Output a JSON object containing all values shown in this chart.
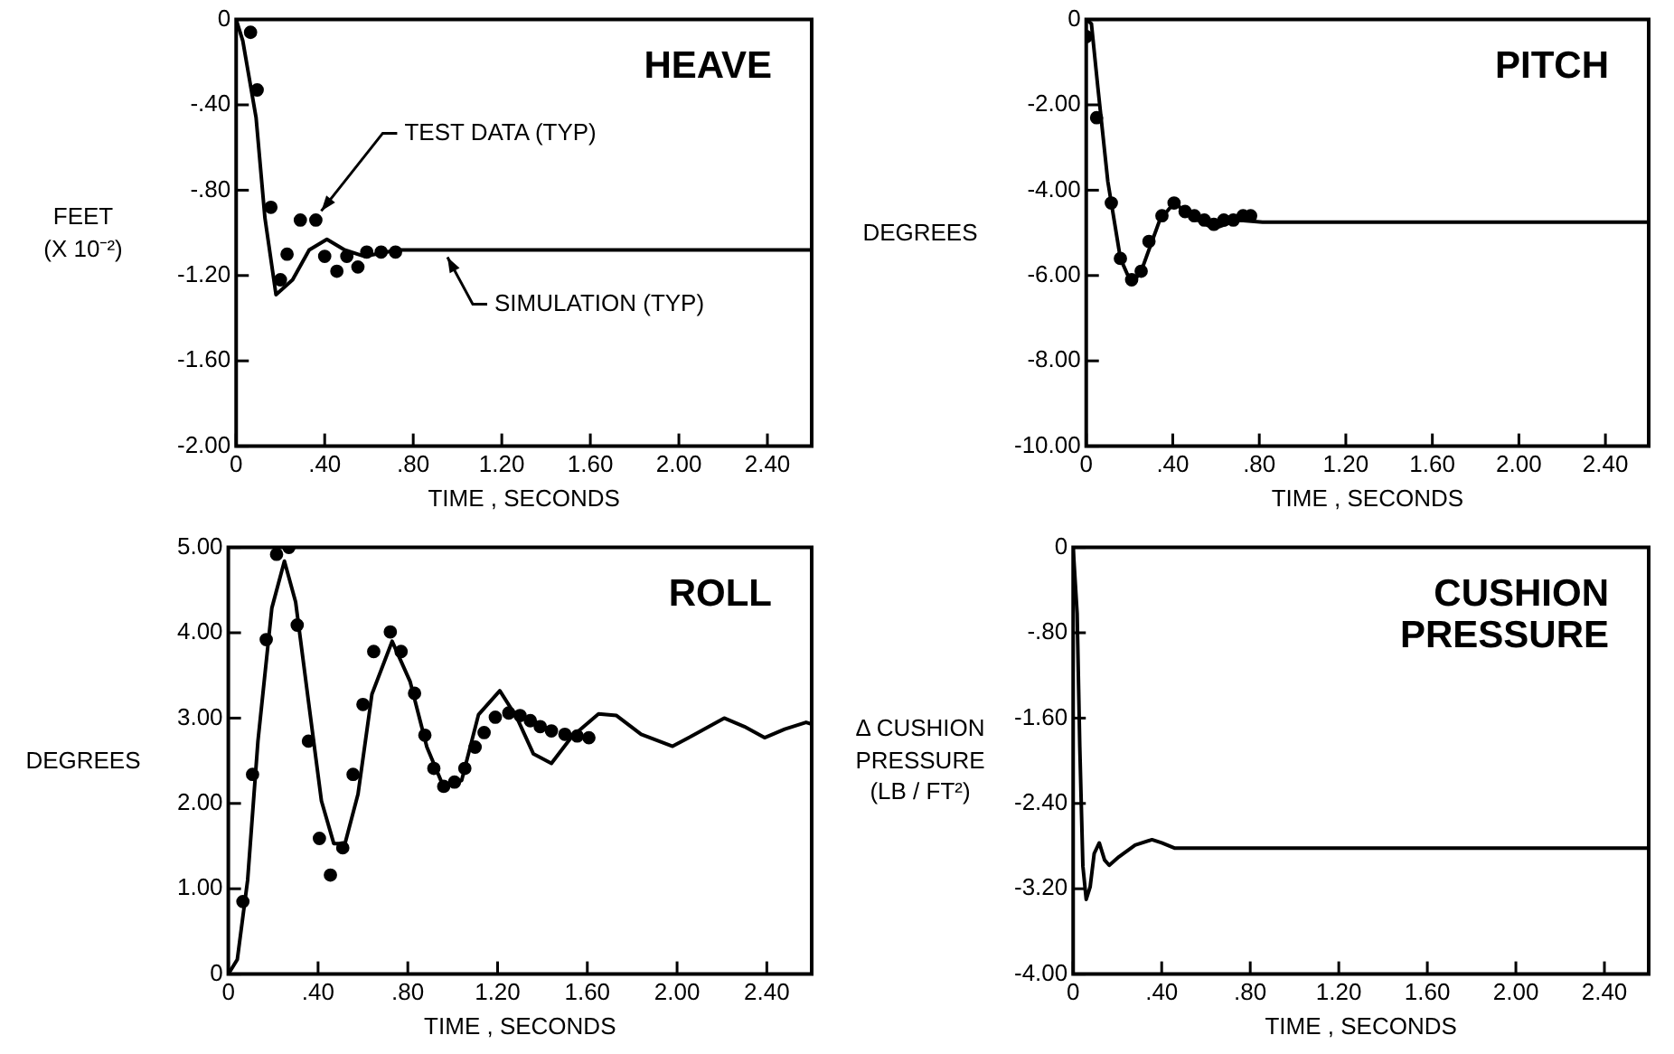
{
  "chart_data": [
    {
      "type": "line",
      "title": "HEAVE",
      "xlabel": "TIME , SECONDS",
      "ylabel": "FEET\n(X 10⁻²)",
      "xlim": [
        0,
        2.6
      ],
      "xticks": [
        {
          "value": 0,
          "label": "0"
        },
        {
          "value": 0.4,
          "label": ".40"
        },
        {
          "value": 0.8,
          "label": ".80"
        },
        {
          "value": 1.2,
          "label": "1.20"
        },
        {
          "value": 1.6,
          "label": "1.60"
        },
        {
          "value": 2,
          "label": "2.00"
        },
        {
          "value": 2.4,
          "label": "2.40"
        }
      ],
      "ylim": [
        -2,
        0
      ],
      "yticks": [
        {
          "value": -2,
          "label": "-2.00"
        },
        {
          "value": -1.6,
          "label": "-1.60"
        },
        {
          "value": -1.2,
          "label": "-1.20"
        },
        {
          "value": -0.8,
          "label": "-.80"
        },
        {
          "value": -0.4,
          "label": "-.40"
        },
        {
          "value": 0,
          "label": "0"
        }
      ],
      "series": [
        {
          "type": "scatter",
          "color": "#000000",
          "marker": "circle",
          "x": [
            0.065,
            0.095,
            0.157,
            0.2,
            0.23,
            0.29,
            0.36,
            0.4,
            0.455,
            0.5,
            0.55,
            0.59,
            0.655,
            0.72
          ],
          "values": [
            -0.06,
            -0.33,
            -0.88,
            -1.22,
            -1.1,
            -0.94,
            -0.94,
            -1.11,
            -1.18,
            -1.11,
            -1.16,
            -1.09,
            -1.09,
            -1.09
          ]
        },
        {
          "type": "line",
          "color": "#000000",
          "marker": "none",
          "x": [
            0,
            0.03,
            0.09,
            0.13,
            0.18,
            0.255,
            0.33,
            0.41,
            0.49,
            0.58,
            0.73,
            2.6
          ],
          "values": [
            0,
            -0.1,
            -0.46,
            -0.93,
            -1.29,
            -1.22,
            -1.08,
            -1.03,
            -1.08,
            -1.11,
            -1.08,
            -1.08
          ]
        }
      ],
      "annotations": [
        {
          "text": "TEST DATA (TYP)",
          "x": 0.36,
          "y": -0.94
        },
        {
          "text": "SIMULATION (TYP)",
          "x": 0.93,
          "y": -1.08
        }
      ]
    },
    {
      "type": "line",
      "title": "PITCH",
      "xlabel": "TIME , SECONDS",
      "ylabel": "DEGREES",
      "xlim": [
        0,
        2.6
      ],
      "xticks": [
        {
          "value": 0,
          "label": "0"
        },
        {
          "value": 0.4,
          "label": ".40"
        },
        {
          "value": 0.8,
          "label": ".80"
        },
        {
          "value": 1.2,
          "label": "1.20"
        },
        {
          "value": 1.6,
          "label": "1.60"
        },
        {
          "value": 2,
          "label": "2.00"
        },
        {
          "value": 2.4,
          "label": "2.40"
        }
      ],
      "ylim": [
        -10,
        0
      ],
      "yticks": [
        {
          "value": -10,
          "label": "-10.00"
        },
        {
          "value": -8,
          "label": "-8.00"
        },
        {
          "value": -6,
          "label": "-6.00"
        },
        {
          "value": -4,
          "label": "-4.00"
        },
        {
          "value": -2,
          "label": "-2.00"
        },
        {
          "value": 0,
          "label": "0"
        }
      ],
      "series": [
        {
          "type": "scatter",
          "color": "#000000",
          "marker": "circle",
          "x": [
            0,
            0.048,
            0.116,
            0.158,
            0.21,
            0.254,
            0.29,
            0.35,
            0.406,
            0.457,
            0.5,
            0.546,
            0.59,
            0.636,
            0.68,
            0.725,
            0.76
          ],
          "values": [
            -0.4,
            -2.3,
            -4.3,
            -5.6,
            -6.1,
            -5.9,
            -5.2,
            -4.6,
            -4.3,
            -4.5,
            -4.6,
            -4.7,
            -4.8,
            -4.7,
            -4.7,
            -4.6,
            -4.6
          ]
        },
        {
          "type": "line",
          "color": "#000000",
          "marker": "none",
          "x": [
            0,
            0.024,
            0.054,
            0.1,
            0.158,
            0.21,
            0.254,
            0.34,
            0.406,
            0.516,
            0.59,
            0.7,
            0.815,
            2.6
          ],
          "values": [
            0,
            -0.1,
            -1.6,
            -3.8,
            -5.6,
            -6.2,
            -5.9,
            -4.7,
            -4.3,
            -4.7,
            -4.9,
            -4.7,
            -4.75,
            -4.75
          ]
        }
      ]
    },
    {
      "type": "line",
      "title": "ROLL",
      "xlabel": "TIME , SECONDS",
      "ylabel": "DEGREES",
      "xlim": [
        0,
        2.6
      ],
      "xticks": [
        {
          "value": 0,
          "label": "0"
        },
        {
          "value": 0.4,
          "label": ".40"
        },
        {
          "value": 0.8,
          "label": ".80"
        },
        {
          "value": 1.2,
          "label": "1.20"
        },
        {
          "value": 1.6,
          "label": "1.60"
        },
        {
          "value": 2,
          "label": "2.00"
        },
        {
          "value": 2.4,
          "label": "2.40"
        }
      ],
      "ylim": [
        0,
        5
      ],
      "yticks": [
        {
          "value": 0,
          "label": "0"
        },
        {
          "value": 1,
          "label": "1.00"
        },
        {
          "value": 2,
          "label": "2.00"
        },
        {
          "value": 3,
          "label": "3.00"
        },
        {
          "value": 4,
          "label": "4.00"
        },
        {
          "value": 5,
          "label": "5.00"
        }
      ],
      "series": [
        {
          "type": "scatter",
          "color": "#000000",
          "marker": "circle",
          "x": [
            0.065,
            0.108,
            0.169,
            0.215,
            0.27,
            0.307,
            0.357,
            0.406,
            0.455,
            0.51,
            0.556,
            0.6,
            0.648,
            0.722,
            0.77,
            0.83,
            0.876,
            0.916,
            0.96,
            1.008,
            1.054,
            1.1,
            1.14,
            1.19,
            1.25,
            1.3,
            1.346,
            1.39,
            1.44,
            1.5,
            1.555,
            1.607
          ],
          "values": [
            0.85,
            2.34,
            3.92,
            4.92,
            5.0,
            4.09,
            2.73,
            1.59,
            1.16,
            1.48,
            2.34,
            3.16,
            3.78,
            4.01,
            3.78,
            3.29,
            2.8,
            2.41,
            2.2,
            2.25,
            2.41,
            2.66,
            2.83,
            3.01,
            3.06,
            3.03,
            2.97,
            2.9,
            2.85,
            2.81,
            2.79,
            2.77
          ]
        },
        {
          "type": "line",
          "color": "#000000",
          "marker": "none",
          "x": [
            0,
            0.04,
            0.086,
            0.132,
            0.194,
            0.25,
            0.3,
            0.357,
            0.415,
            0.47,
            0.52,
            0.578,
            0.64,
            0.73,
            0.81,
            0.885,
            0.96,
            1.04,
            1.115,
            1.21,
            1.285,
            1.36,
            1.44,
            1.53,
            1.65,
            1.73,
            1.84,
            1.98,
            2.08,
            2.21,
            2.3,
            2.39,
            2.48,
            2.575,
            2.6
          ],
          "values": [
            0,
            0.17,
            1.1,
            2.73,
            4.29,
            4.84,
            4.36,
            3.2,
            2.03,
            1.53,
            1.53,
            2.11,
            3.28,
            3.9,
            3.43,
            2.66,
            2.19,
            2.27,
            3.04,
            3.32,
            3.01,
            2.58,
            2.47,
            2.78,
            3.05,
            3.03,
            2.81,
            2.67,
            2.81,
            3.0,
            2.9,
            2.77,
            2.87,
            2.95,
            2.93
          ]
        }
      ]
    },
    {
      "type": "line",
      "title": "CUSHION\nPRESSURE",
      "xlabel": "TIME , SECONDS",
      "ylabel": "Δ CUSHION\nPRESSURE\n(LB / FT²)",
      "xlim": [
        0,
        2.6
      ],
      "xticks": [
        {
          "value": 0,
          "label": "0"
        },
        {
          "value": 0.4,
          "label": ".40"
        },
        {
          "value": 0.8,
          "label": ".80"
        },
        {
          "value": 1.2,
          "label": "1.20"
        },
        {
          "value": 1.6,
          "label": "1.60"
        },
        {
          "value": 2,
          "label": "2.00"
        },
        {
          "value": 2.4,
          "label": "2.40"
        }
      ],
      "ylim": [
        -4,
        0
      ],
      "yticks": [
        {
          "value": -4,
          "label": "-4.00"
        },
        {
          "value": -3.2,
          "label": "-3.20"
        },
        {
          "value": -2.4,
          "label": "-2.40"
        },
        {
          "value": -1.6,
          "label": "-1.60"
        },
        {
          "value": -0.8,
          "label": "-.80"
        },
        {
          "value": 0,
          "label": "0"
        }
      ],
      "series": [
        {
          "type": "line",
          "color": "#000000",
          "marker": "none",
          "x": [
            0,
            0.018,
            0.03,
            0.044,
            0.059,
            0.077,
            0.095,
            0.118,
            0.142,
            0.163,
            0.207,
            0.28,
            0.356,
            0.4,
            0.46,
            2.6
          ],
          "values": [
            0,
            -0.62,
            -1.87,
            -2.99,
            -3.3,
            -3.18,
            -2.87,
            -2.77,
            -2.93,
            -2.98,
            -2.9,
            -2.79,
            -2.74,
            -2.77,
            -2.82,
            -2.82
          ]
        }
      ]
    }
  ]
}
